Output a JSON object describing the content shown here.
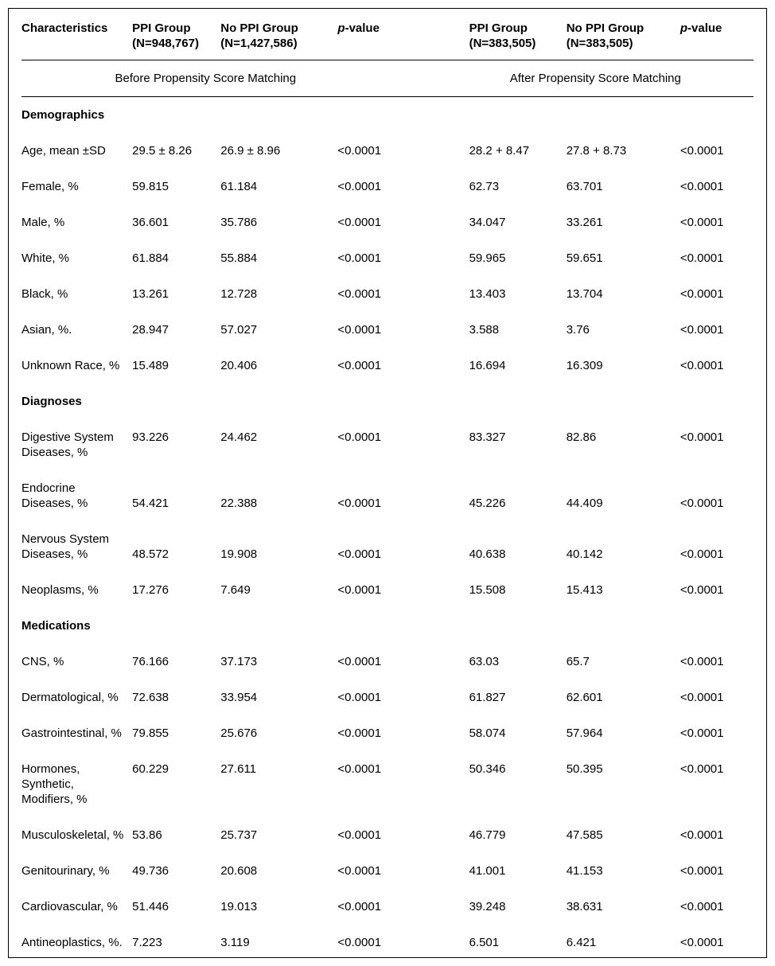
{
  "document": {
    "table": {
      "column_headers": {
        "characteristics": "Characteristics",
        "before": {
          "ppi_group": {
            "label": "PPI Group",
            "n": "(N=948,767)"
          },
          "no_ppi_group": {
            "label": "No PPI Group",
            "n": "(N=1,427,586)"
          },
          "p_value": {
            "p": "p",
            "suffix": "-value"
          }
        },
        "after": {
          "ppi_group": {
            "label": "PPI Group",
            "n": "(N=383,505)"
          },
          "no_ppi_group": {
            "label": "No PPI Group",
            "n": "(N=383,505)"
          },
          "p_value": {
            "p": "p",
            "suffix": "-value"
          }
        }
      },
      "group_headers": {
        "before": "Before Propensity Score Matching",
        "after": "After Propensity Score Matching"
      },
      "sections": [
        {
          "title": "Demographics",
          "rows": [
            {
              "label": "Age, mean ±SD",
              "values": [
                "29.5 ± 8.26",
                "26.9 ± 8.96",
                "<0.0001",
                "28.2 + 8.47",
                "27.8 + 8.73",
                "<0.0001"
              ]
            },
            {
              "label": "Female, %",
              "values": [
                "59.815",
                "61.184",
                "<0.0001",
                "62.73",
                "63.701",
                "<0.0001"
              ]
            },
            {
              "label": "Male, %",
              "values": [
                "36.601",
                "35.786",
                "<0.0001",
                "34.047",
                "33.261",
                "<0.0001"
              ]
            },
            {
              "label": "White, %",
              "values": [
                "61.884",
                "55.884",
                "<0.0001",
                "59.965",
                "59.651",
                "<0.0001"
              ]
            },
            {
              "label": "Black, %",
              "values": [
                "13.261",
                "12.728",
                "<0.0001",
                "13.403",
                "13.704",
                "<0.0001"
              ]
            },
            {
              "label": "Asian, %.",
              "values": [
                "28.947",
                "57.027",
                "<0.0001",
                "3.588",
                "3.76",
                "<0.0001"
              ]
            },
            {
              "label": "Unknown Race, %",
              "values": [
                "15.489",
                "20.406",
                "<0.0001",
                "16.694",
                "16.309",
                "<0.0001"
              ]
            }
          ]
        },
        {
          "title": "Diagnoses",
          "rows": [
            {
              "label": "Digestive System\nDiseases, %",
              "valign": "top",
              "values": [
                "93.226",
                "24.462",
                "<0.0001",
                "83.327",
                "82.86",
                "<0.0001"
              ]
            },
            {
              "label": "Endocrine\nDiseases, %",
              "valign": "bottom",
              "values": [
                "54.421",
                "22.388",
                "<0.0001",
                "45.226",
                "44.409",
                "<0.0001"
              ]
            },
            {
              "label": "Nervous System\nDiseases, %",
              "valign": "bottom",
              "values": [
                "48.572",
                "19.908",
                "<0.0001",
                "40.638",
                "40.142",
                "<0.0001"
              ]
            },
            {
              "label": "Neoplasms, %",
              "values": [
                "17.276",
                "7.649",
                "<0.0001",
                "15.508",
                "15.413",
                "<0.0001"
              ]
            }
          ]
        },
        {
          "title": "Medications",
          "rows": [
            {
              "label": "CNS, %",
              "values": [
                "76.166",
                "37.173",
                "<0.0001",
                "63.03",
                "65.7",
                "<0.0001"
              ]
            },
            {
              "label": "Dermatological, %",
              "values": [
                "72.638",
                "33.954",
                "<0.0001",
                "61.827",
                "62.601",
                "<0.0001"
              ]
            },
            {
              "label": "Gastrointestinal, %",
              "values": [
                "79.855",
                "25.676",
                "<0.0001",
                "58.074",
                "57.964",
                "<0.0001"
              ]
            },
            {
              "label": "Hormones, Synthetic,\nModifiers, %",
              "valign": "top",
              "values": [
                "60.229",
                "27.611",
                "<0.0001",
                "50.346",
                "50.395",
                "<0.0001"
              ]
            },
            {
              "label": "Musculoskeletal, %",
              "values": [
                "53.86",
                "25.737",
                "<0.0001",
                "46.779",
                "47.585",
                "<0.0001"
              ]
            },
            {
              "label": "Genitourinary, %",
              "values": [
                "49.736",
                "20.608",
                "<0.0001",
                "41.001",
                "41.153",
                "<0.0001"
              ]
            },
            {
              "label": "Cardiovascular, %",
              "values": [
                "51.446",
                "19.013",
                "<0.0001",
                "39.248",
                "38.631",
                "<0.0001"
              ]
            },
            {
              "label": "Antineoplastics, %.",
              "values": [
                "7.223",
                "3.119",
                "<0.0001",
                "6.501",
                "6.421",
                "<0.0001"
              ]
            }
          ]
        }
      ]
    }
  }
}
